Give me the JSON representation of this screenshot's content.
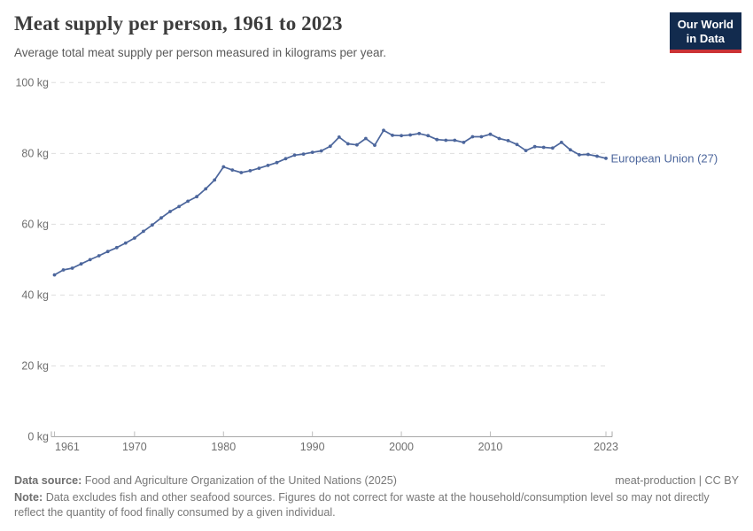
{
  "header": {
    "title": "Meat supply per person, 1961 to 2023",
    "subtitle": "Average total meat supply per person measured in kilograms per year.",
    "logo": {
      "line1": "Our World",
      "line2": "in Data"
    }
  },
  "colors": {
    "series_blue": "#4c669c",
    "logo_navy": "#122b4e",
    "logo_red": "#cb3335",
    "grid_gray": "#dedede",
    "axis_gray": "#a8a8a8",
    "tick_label_gray": "#6f6f6f"
  },
  "chart_data": {
    "type": "line",
    "title": "Meat supply per person, 1961 to 2023",
    "unit": "kg",
    "xlabel": "",
    "ylabel": "",
    "ylim": [
      0,
      100
    ],
    "xlim": [
      1961,
      2023
    ],
    "grid": "horizontal-dashed",
    "legend_position": "end-of-line-label",
    "yticks": [
      0,
      20,
      40,
      60,
      80,
      100
    ],
    "ytick_labels": [
      "0 kg",
      "20 kg",
      "40 kg",
      "60 kg",
      "80 kg",
      "100 kg"
    ],
    "xticks": [
      1961,
      1970,
      1980,
      1990,
      2000,
      2010,
      2023
    ],
    "xtick_labels": [
      "1961",
      "1970",
      "1980",
      "1990",
      "2000",
      "2010",
      "2023"
    ],
    "x": [
      1961,
      1962,
      1963,
      1964,
      1965,
      1966,
      1967,
      1968,
      1969,
      1970,
      1971,
      1972,
      1973,
      1974,
      1975,
      1976,
      1977,
      1978,
      1979,
      1980,
      1981,
      1982,
      1983,
      1984,
      1985,
      1986,
      1987,
      1988,
      1989,
      1990,
      1991,
      1992,
      1993,
      1994,
      1995,
      1996,
      1997,
      1998,
      1999,
      2000,
      2001,
      2002,
      2003,
      2004,
      2005,
      2006,
      2007,
      2008,
      2009,
      2010,
      2011,
      2012,
      2013,
      2014,
      2015,
      2016,
      2017,
      2018,
      2019,
      2020,
      2021,
      2022,
      2023
    ],
    "series": [
      {
        "name": "European Union (27)",
        "color": "#4c669c",
        "values": [
          45.7,
          47.1,
          47.6,
          48.8,
          50.0,
          51.1,
          52.3,
          53.4,
          54.7,
          56.1,
          58.0,
          59.8,
          61.8,
          63.6,
          65.0,
          66.5,
          67.8,
          70.0,
          72.5,
          76.2,
          75.3,
          74.6,
          75.1,
          75.8,
          76.6,
          77.4,
          78.5,
          79.5,
          79.8,
          80.3,
          80.7,
          82.0,
          84.6,
          82.7,
          82.4,
          84.2,
          82.3,
          86.5,
          85.1,
          85.0,
          85.2,
          85.6,
          85.0,
          83.9,
          83.7,
          83.7,
          83.1,
          84.7,
          84.7,
          85.4,
          84.2,
          83.6,
          82.5,
          80.8,
          81.9,
          81.7,
          81.5,
          83.1,
          81.0,
          79.6,
          79.7,
          79.2,
          78.6
        ]
      }
    ]
  },
  "footer": {
    "datasource_label": "Data source:",
    "datasource": "Food and Agriculture Organization of the United Nations (2025)",
    "credit": "meat-production | CC BY",
    "note_label": "Note:",
    "note": "Data excludes fish and other seafood sources. Figures do not correct for waste at the household/consumption level so may not directly reflect the quantity of food finally consumed by a given individual."
  }
}
